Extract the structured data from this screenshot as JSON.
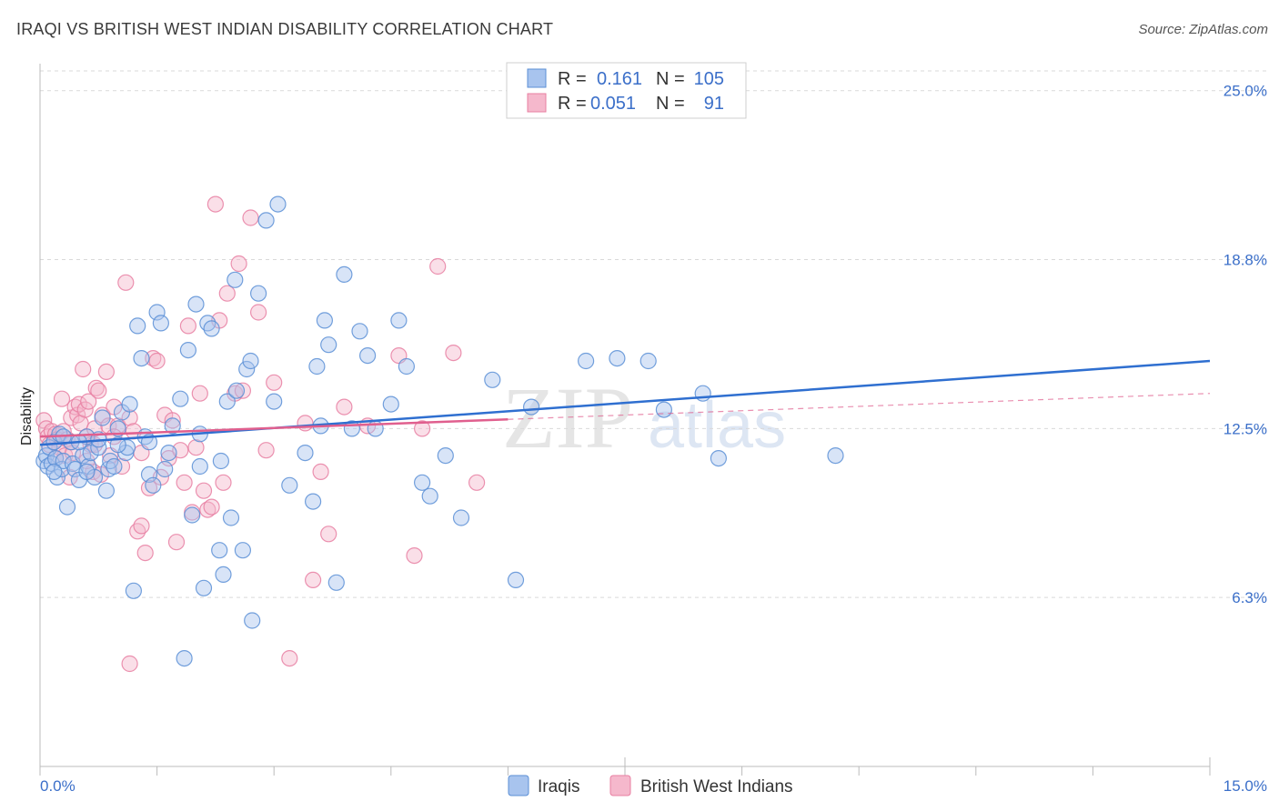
{
  "title": "IRAQI VS BRITISH WEST INDIAN DISABILITY CORRELATION CHART",
  "source": "Source: ZipAtlas.com",
  "watermark": {
    "zip": "ZIP",
    "atlas": "atlas"
  },
  "chart_data": {
    "type": "scatter",
    "title": "IRAQI VS BRITISH WEST INDIAN DISABILITY CORRELATION CHART",
    "xlabel": "",
    "ylabel": "Disability",
    "xlim": [
      0,
      15
    ],
    "ylim": [
      0,
      26
    ],
    "x_tick_labels": {
      "min": "0.0%",
      "max": "15.0%"
    },
    "y_ticks": [
      {
        "value": 6.25,
        "label": "6.3%"
      },
      {
        "value": 12.5,
        "label": "12.5%"
      },
      {
        "value": 18.75,
        "label": "18.8%"
      },
      {
        "value": 25.0,
        "label": "25.0%"
      }
    ],
    "legend": {
      "rows": [
        {
          "r_label": "R =",
          "r_value": "0.161",
          "n_label": "N =",
          "n_value": "105"
        },
        {
          "r_label": "R =",
          "r_value": "0.051",
          "n_label": "N =",
          "n_value": "91"
        }
      ]
    },
    "colors": {
      "iraqis_fill": "#a8c4ee",
      "iraqis_stroke": "#5b8fd6",
      "iraqis_line": "#2f6fd0",
      "bwi_fill": "#f5b8cc",
      "bwi_stroke": "#e87fa2",
      "bwi_line": "#e05f8e",
      "grid": "#d9d9d9",
      "tick_text": "#3b6fc9"
    },
    "series": [
      {
        "name": "Iraqis",
        "trend": {
          "x0": 0,
          "y0": 11.9,
          "x1": 15,
          "y1": 15.0,
          "dashed_from": null
        },
        "points": [
          [
            0.05,
            11.3
          ],
          [
            0.08,
            11.5
          ],
          [
            0.1,
            11.1
          ],
          [
            0.12,
            11.8
          ],
          [
            0.15,
            11.2
          ],
          [
            0.18,
            12.0
          ],
          [
            0.2,
            11.4
          ],
          [
            0.22,
            10.7
          ],
          [
            0.25,
            12.3
          ],
          [
            0.28,
            11.0
          ],
          [
            0.3,
            11.3
          ],
          [
            0.35,
            9.6
          ],
          [
            0.4,
            12.0
          ],
          [
            0.42,
            11.2
          ],
          [
            0.45,
            11.0
          ],
          [
            0.5,
            10.6
          ],
          [
            0.55,
            11.5
          ],
          [
            0.6,
            12.2
          ],
          [
            0.62,
            11.1
          ],
          [
            0.65,
            11.6
          ],
          [
            0.7,
            10.7
          ],
          [
            0.75,
            11.8
          ],
          [
            0.8,
            12.9
          ],
          [
            0.85,
            10.2
          ],
          [
            0.88,
            11.0
          ],
          [
            0.9,
            11.3
          ],
          [
            1.0,
            12.5
          ],
          [
            1.05,
            13.1
          ],
          [
            1.1,
            11.6
          ],
          [
            1.12,
            11.8
          ],
          [
            1.15,
            13.4
          ],
          [
            1.2,
            6.5
          ],
          [
            1.25,
            16.3
          ],
          [
            1.3,
            15.1
          ],
          [
            1.35,
            12.2
          ],
          [
            1.4,
            10.8
          ],
          [
            1.45,
            10.4
          ],
          [
            1.5,
            16.8
          ],
          [
            1.55,
            16.4
          ],
          [
            1.6,
            11.0
          ],
          [
            1.65,
            11.6
          ],
          [
            1.7,
            12.6
          ],
          [
            1.8,
            13.6
          ],
          [
            1.85,
            4.0
          ],
          [
            1.9,
            15.4
          ],
          [
            1.95,
            9.3
          ],
          [
            2.0,
            17.1
          ],
          [
            2.05,
            11.1
          ],
          [
            2.1,
            6.6
          ],
          [
            2.15,
            16.4
          ],
          [
            2.2,
            16.2
          ],
          [
            2.3,
            8.0
          ],
          [
            2.32,
            11.3
          ],
          [
            2.35,
            7.1
          ],
          [
            2.4,
            13.5
          ],
          [
            2.45,
            9.2
          ],
          [
            2.5,
            18.0
          ],
          [
            2.52,
            13.9
          ],
          [
            2.6,
            8.0
          ],
          [
            2.65,
            14.7
          ],
          [
            2.7,
            15.0
          ],
          [
            2.72,
            5.4
          ],
          [
            2.8,
            17.5
          ],
          [
            2.9,
            20.2
          ],
          [
            3.0,
            13.5
          ],
          [
            3.05,
            20.8
          ],
          [
            3.2,
            10.4
          ],
          [
            3.4,
            11.6
          ],
          [
            3.5,
            9.8
          ],
          [
            3.55,
            14.8
          ],
          [
            3.6,
            12.6
          ],
          [
            3.65,
            16.5
          ],
          [
            3.7,
            15.6
          ],
          [
            3.8,
            6.8
          ],
          [
            3.9,
            18.2
          ],
          [
            4.0,
            12.5
          ],
          [
            4.1,
            16.1
          ],
          [
            4.2,
            15.2
          ],
          [
            4.3,
            12.5
          ],
          [
            4.5,
            13.4
          ],
          [
            4.6,
            16.5
          ],
          [
            4.7,
            14.8
          ],
          [
            4.9,
            10.5
          ],
          [
            5.0,
            10.0
          ],
          [
            5.2,
            11.5
          ],
          [
            5.4,
            9.2
          ],
          [
            5.8,
            14.3
          ],
          [
            6.1,
            6.9
          ],
          [
            6.3,
            13.3
          ],
          [
            7.0,
            15.0
          ],
          [
            7.4,
            15.1
          ],
          [
            7.8,
            15.0
          ],
          [
            8.0,
            13.2
          ],
          [
            8.5,
            13.8
          ],
          [
            8.7,
            11.4
          ],
          [
            10.2,
            11.5
          ],
          [
            0.6,
            10.9
          ],
          [
            1.0,
            11.9
          ],
          [
            0.3,
            12.2
          ],
          [
            0.95,
            11.1
          ],
          [
            1.4,
            12.0
          ],
          [
            0.75,
            12.1
          ],
          [
            2.05,
            12.3
          ],
          [
            0.5,
            12.0
          ],
          [
            0.18,
            10.9
          ]
        ]
      },
      {
        "name": "British West Indians",
        "trend": {
          "x0": 0,
          "y0": 12.2,
          "x1": 15,
          "y1": 13.8,
          "dashed_from": 6.0
        },
        "points": [
          [
            0.05,
            12.8
          ],
          [
            0.08,
            12.5
          ],
          [
            0.1,
            12.2
          ],
          [
            0.12,
            11.9
          ],
          [
            0.15,
            12.4
          ],
          [
            0.18,
            12.0
          ],
          [
            0.2,
            12.3
          ],
          [
            0.22,
            12.1
          ],
          [
            0.25,
            11.8
          ],
          [
            0.28,
            13.6
          ],
          [
            0.3,
            12.4
          ],
          [
            0.32,
            11.5
          ],
          [
            0.35,
            12.1
          ],
          [
            0.38,
            10.7
          ],
          [
            0.4,
            12.9
          ],
          [
            0.42,
            11.6
          ],
          [
            0.45,
            13.3
          ],
          [
            0.48,
            13.0
          ],
          [
            0.5,
            13.4
          ],
          [
            0.52,
            12.7
          ],
          [
            0.55,
            14.7
          ],
          [
            0.58,
            13.2
          ],
          [
            0.6,
            12.2
          ],
          [
            0.62,
            13.5
          ],
          [
            0.65,
            11.9
          ],
          [
            0.68,
            10.9
          ],
          [
            0.7,
            12.5
          ],
          [
            0.72,
            14.0
          ],
          [
            0.75,
            13.9
          ],
          [
            0.78,
            10.8
          ],
          [
            0.8,
            13.0
          ],
          [
            0.85,
            14.6
          ],
          [
            0.88,
            12.6
          ],
          [
            0.9,
            11.5
          ],
          [
            0.95,
            13.3
          ],
          [
            1.0,
            12.6
          ],
          [
            1.05,
            11.1
          ],
          [
            1.1,
            17.9
          ],
          [
            1.15,
            12.9
          ],
          [
            1.2,
            12.4
          ],
          [
            1.25,
            8.7
          ],
          [
            1.3,
            8.9
          ],
          [
            1.35,
            7.9
          ],
          [
            1.4,
            10.3
          ],
          [
            1.45,
            15.1
          ],
          [
            1.5,
            15.0
          ],
          [
            1.55,
            10.7
          ],
          [
            1.6,
            13.0
          ],
          [
            1.65,
            11.4
          ],
          [
            1.7,
            12.8
          ],
          [
            1.75,
            8.3
          ],
          [
            1.8,
            11.7
          ],
          [
            1.85,
            10.5
          ],
          [
            1.9,
            16.3
          ],
          [
            1.95,
            9.4
          ],
          [
            2.0,
            11.8
          ],
          [
            2.05,
            13.8
          ],
          [
            2.1,
            10.2
          ],
          [
            2.15,
            9.5
          ],
          [
            2.2,
            9.6
          ],
          [
            2.25,
            20.8
          ],
          [
            2.3,
            16.5
          ],
          [
            2.35,
            10.5
          ],
          [
            2.4,
            17.5
          ],
          [
            2.5,
            13.8
          ],
          [
            2.55,
            18.6
          ],
          [
            2.6,
            13.9
          ],
          [
            2.7,
            20.3
          ],
          [
            2.8,
            16.8
          ],
          [
            2.9,
            11.7
          ],
          [
            3.0,
            14.2
          ],
          [
            3.2,
            4.0
          ],
          [
            3.4,
            12.7
          ],
          [
            3.5,
            6.9
          ],
          [
            3.6,
            10.9
          ],
          [
            3.7,
            8.6
          ],
          [
            3.9,
            13.3
          ],
          [
            4.2,
            12.6
          ],
          [
            4.6,
            15.2
          ],
          [
            4.8,
            7.8
          ],
          [
            4.9,
            12.5
          ],
          [
            5.1,
            18.5
          ],
          [
            5.3,
            15.3
          ],
          [
            5.6,
            10.5
          ],
          [
            1.15,
            3.8
          ],
          [
            0.95,
            12.2
          ],
          [
            0.4,
            12.0
          ],
          [
            0.6,
            11.3
          ],
          [
            1.3,
            11.6
          ],
          [
            0.2,
            11.4
          ],
          [
            0.7,
            11.9
          ]
        ]
      }
    ]
  },
  "bottom_legend": {
    "iraqis": "Iraqis",
    "bwi": "British West Indians"
  }
}
